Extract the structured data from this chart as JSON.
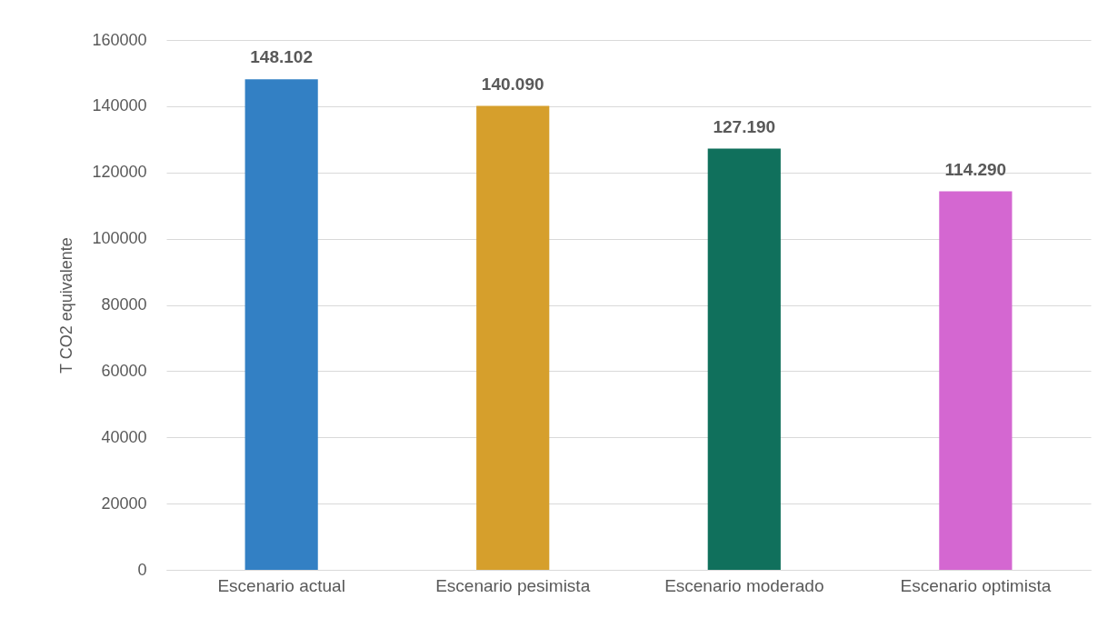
{
  "chart_data": {
    "type": "bar",
    "ylabel": "T CO2 equivalente",
    "categories": [
      "Escenario actual",
      "Escenario pesimista",
      "Escenario moderado",
      "Escenario optimista"
    ],
    "values": [
      148102,
      140090,
      127190,
      114290
    ],
    "value_labels": [
      "148.102",
      "140.090",
      "127.190",
      "114.290"
    ],
    "colors": [
      "#3380c4",
      "#d69f2c",
      "#10705c",
      "#d467d1"
    ],
    "ylim": [
      0,
      160000
    ],
    "yticks": [
      0,
      20000,
      40000,
      60000,
      80000,
      100000,
      120000,
      140000,
      160000
    ],
    "grid": "y"
  }
}
